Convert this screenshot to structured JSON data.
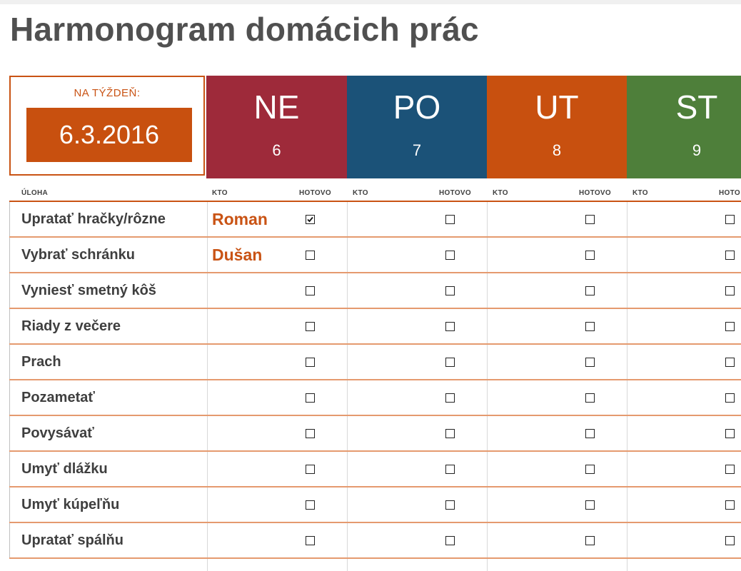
{
  "title": "Harmonogram domácich prác",
  "week": {
    "label": "NA TÝŽDEŇ:",
    "date": "6.3.2016"
  },
  "days": [
    {
      "abbr": "NE",
      "num": "6",
      "color": "#9e2a3a"
    },
    {
      "abbr": "PO",
      "num": "7",
      "color": "#1b5278"
    },
    {
      "abbr": "UT",
      "num": "8",
      "color": "#c8500f"
    },
    {
      "abbr": "ST",
      "num": "9",
      "color": "#4e7f3a"
    }
  ],
  "headers": {
    "task": "ÚLOHA",
    "who": "KTO",
    "done": "HOTOVO",
    "done_cut": "HOTO"
  },
  "tasks": [
    {
      "name": "Upratať hračky/rôzne",
      "who": "Roman",
      "done": [
        true,
        false,
        false,
        false
      ]
    },
    {
      "name": "Vybrať schránku",
      "who": "Dušan",
      "done": [
        false,
        false,
        false,
        false
      ]
    },
    {
      "name": "Vyniesť smetný kôš",
      "who": "",
      "done": [
        false,
        false,
        false,
        false
      ]
    },
    {
      "name": "Riady z večere",
      "who": "",
      "done": [
        false,
        false,
        false,
        false
      ]
    },
    {
      "name": "Prach",
      "who": "",
      "done": [
        false,
        false,
        false,
        false
      ]
    },
    {
      "name": "Pozametať",
      "who": "",
      "done": [
        false,
        false,
        false,
        false
      ]
    },
    {
      "name": "Povysávať",
      "who": "",
      "done": [
        false,
        false,
        false,
        false
      ]
    },
    {
      "name": "Umyť dlážku",
      "who": "",
      "done": [
        false,
        false,
        false,
        false
      ]
    },
    {
      "name": "Umyť kúpeľňu",
      "who": "",
      "done": [
        false,
        false,
        false,
        false
      ]
    },
    {
      "name": "Upratať spálňu",
      "who": "",
      "done": [
        false,
        false,
        false,
        false
      ]
    }
  ],
  "colors": {
    "accent": "#c95314",
    "row_divider": "#e59a6f",
    "text": "#3f3f3f"
  }
}
